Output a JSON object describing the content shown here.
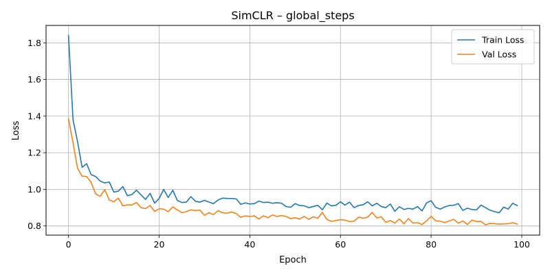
{
  "chart_data": {
    "type": "line",
    "title": "SimCLR – global_steps",
    "xlabel": "Epoch",
    "ylabel": "Loss",
    "xlim": [
      -4.95,
      103.95
    ],
    "ylim": [
      0.75,
      1.895
    ],
    "xticks": [
      0,
      20,
      40,
      60,
      80,
      100
    ],
    "yticks": [
      0.8,
      1.0,
      1.2,
      1.4,
      1.6,
      1.8
    ],
    "xtick_labels": [
      "0",
      "20",
      "40",
      "60",
      "80",
      "100"
    ],
    "ytick_labels": [
      "0.8",
      "1.0",
      "1.2",
      "1.4",
      "1.6",
      "1.8"
    ],
    "grid": true,
    "legend_position": "top-right",
    "series": [
      {
        "name": "Train Loss",
        "color": "#1f77b4",
        "x": [
          0,
          1,
          2,
          3,
          4,
          5,
          6,
          7,
          8,
          9,
          10,
          11,
          12,
          13,
          14,
          15,
          16,
          17,
          18,
          19,
          20,
          21,
          22,
          23,
          24,
          25,
          26,
          27,
          28,
          29,
          30,
          31,
          32,
          33,
          34,
          35,
          36,
          37,
          38,
          39,
          40,
          41,
          42,
          43,
          44,
          45,
          46,
          47,
          48,
          49,
          50,
          51,
          52,
          53,
          54,
          55,
          56,
          57,
          58,
          59,
          60,
          61,
          62,
          63,
          64,
          65,
          66,
          67,
          68,
          69,
          70,
          71,
          72,
          73,
          74,
          75,
          76,
          77,
          78,
          79,
          80,
          81,
          82,
          83,
          84,
          85,
          86,
          87,
          88,
          89,
          90,
          91,
          92,
          93,
          94,
          95,
          96,
          97,
          98,
          99
        ],
        "values": [
          1.84,
          1.38,
          1.26,
          1.12,
          1.14,
          1.08,
          1.07,
          1.045,
          1.035,
          1.04,
          0.985,
          0.99,
          1.015,
          0.965,
          0.972,
          0.995,
          0.97,
          0.945,
          0.978,
          0.925,
          0.95,
          1.0,
          0.955,
          0.995,
          0.94,
          0.928,
          0.93,
          0.96,
          0.935,
          0.93,
          0.94,
          0.93,
          0.922,
          0.942,
          0.952,
          0.95,
          0.95,
          0.948,
          0.918,
          0.926,
          0.92,
          0.922,
          0.936,
          0.928,
          0.93,
          0.924,
          0.927,
          0.924,
          0.906,
          0.902,
          0.922,
          0.912,
          0.91,
          0.9,
          0.906,
          0.913,
          0.888,
          0.925,
          0.91,
          0.913,
          0.932,
          0.914,
          0.93,
          0.9,
          0.912,
          0.916,
          0.932,
          0.91,
          0.924,
          0.906,
          0.9,
          0.92,
          0.88,
          0.905,
          0.89,
          0.896,
          0.892,
          0.906,
          0.882,
          0.926,
          0.938,
          0.902,
          0.892,
          0.904,
          0.912,
          0.913,
          0.922,
          0.885,
          0.897,
          0.89,
          0.888,
          0.914,
          0.9,
          0.886,
          0.878,
          0.872,
          0.903,
          0.892,
          0.924,
          0.911
        ]
      },
      {
        "name": "Val  Loss",
        "color": "#ff7f0e",
        "x": [
          0,
          1,
          2,
          3,
          4,
          5,
          6,
          7,
          8,
          9,
          10,
          11,
          12,
          13,
          14,
          15,
          16,
          17,
          18,
          19,
          20,
          21,
          22,
          23,
          24,
          25,
          26,
          27,
          28,
          29,
          30,
          31,
          32,
          33,
          34,
          35,
          36,
          37,
          38,
          39,
          40,
          41,
          42,
          43,
          44,
          45,
          46,
          47,
          48,
          49,
          50,
          51,
          52,
          53,
          54,
          55,
          56,
          57,
          58,
          59,
          60,
          61,
          62,
          63,
          64,
          65,
          66,
          67,
          68,
          69,
          70,
          71,
          72,
          73,
          74,
          75,
          76,
          77,
          78,
          79,
          80,
          81,
          82,
          83,
          84,
          85,
          86,
          87,
          88,
          89,
          90,
          91,
          92,
          93,
          94,
          95,
          96,
          97,
          98,
          99
        ],
        "values": [
          1.385,
          1.255,
          1.115,
          1.072,
          1.07,
          1.038,
          0.975,
          0.962,
          0.998,
          0.942,
          0.932,
          0.952,
          0.91,
          0.915,
          0.915,
          0.928,
          0.9,
          0.895,
          0.912,
          0.88,
          0.894,
          0.892,
          0.878,
          0.904,
          0.888,
          0.873,
          0.878,
          0.888,
          0.884,
          0.887,
          0.858,
          0.872,
          0.862,
          0.884,
          0.872,
          0.87,
          0.876,
          0.868,
          0.847,
          0.855,
          0.852,
          0.855,
          0.838,
          0.855,
          0.845,
          0.86,
          0.852,
          0.857,
          0.852,
          0.84,
          0.845,
          0.838,
          0.852,
          0.836,
          0.85,
          0.842,
          0.874,
          0.836,
          0.825,
          0.83,
          0.834,
          0.832,
          0.824,
          0.826,
          0.848,
          0.843,
          0.848,
          0.874,
          0.844,
          0.85,
          0.82,
          0.83,
          0.815,
          0.838,
          0.812,
          0.84,
          0.816,
          0.818,
          0.808,
          0.828,
          0.852,
          0.828,
          0.826,
          0.818,
          0.828,
          0.836,
          0.815,
          0.827,
          0.808,
          0.832,
          0.824,
          0.825,
          0.806,
          0.814,
          0.812,
          0.81,
          0.811,
          0.812,
          0.818,
          0.81
        ]
      }
    ]
  }
}
